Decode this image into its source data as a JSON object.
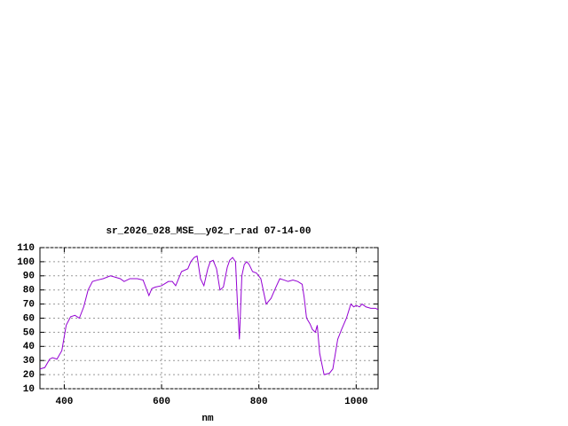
{
  "chart_data": {
    "type": "line",
    "title": "sr_2026_028_MSE__y02_r_rad 07-14-00",
    "x_label": "nm",
    "x": [
      350,
      360,
      370,
      376,
      385,
      395,
      404,
      413,
      422,
      431,
      440,
      449,
      458,
      468,
      480,
      495,
      505,
      515,
      523,
      535,
      550,
      562,
      574,
      580,
      587,
      600,
      614,
      622,
      629,
      641,
      654,
      660,
      667,
      673,
      680,
      687,
      695,
      700,
      706,
      713,
      720,
      727,
      735,
      740,
      746,
      752,
      756,
      760,
      765,
      770,
      775,
      780,
      787,
      795,
      804,
      815,
      825,
      835,
      843,
      852,
      860,
      870,
      880,
      889,
      893,
      898,
      905,
      910,
      916,
      920,
      925,
      934,
      945,
      952,
      962,
      970,
      980,
      989,
      995,
      1000,
      1007,
      1012,
      1020,
      1030,
      1040,
      1045
    ],
    "series": [
      {
        "name": "sr_2026_028_MSE__y02_r_rad",
        "color": "#9400d3",
        "values": [
          24,
          25,
          31,
          32,
          31,
          37,
          55,
          61,
          62,
          60,
          68,
          80,
          86,
          87,
          88,
          90,
          89,
          88,
          86,
          88,
          88,
          87,
          76,
          81,
          82,
          83,
          86,
          86,
          83,
          93,
          95,
          100,
          103,
          104,
          88,
          83,
          95,
          100,
          101,
          95,
          80,
          82,
          96,
          101,
          103,
          100,
          70,
          45,
          90,
          98,
          100,
          98,
          93,
          92,
          88,
          70,
          74,
          82,
          88,
          87,
          86,
          87,
          86,
          84,
          75,
          60,
          56,
          52,
          50,
          55,
          35,
          20,
          21,
          24,
          45,
          52,
          60,
          70,
          68,
          69,
          68,
          70,
          68,
          67,
          67,
          66
        ]
      }
    ],
    "xlim": [
      350,
      1045
    ],
    "xticks": [
      400,
      600,
      800,
      1000
    ],
    "ylim": [
      10,
      110
    ],
    "yticks": [
      10,
      20,
      30,
      40,
      50,
      60,
      70,
      80,
      90,
      100,
      110
    ],
    "grid": true
  }
}
